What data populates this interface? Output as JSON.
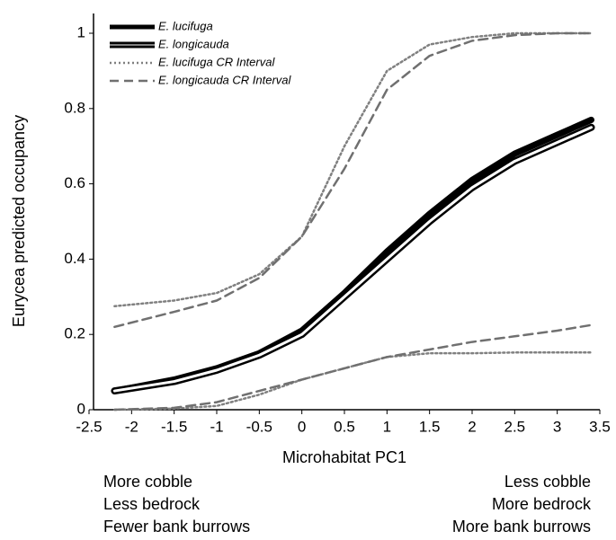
{
  "chart_data": {
    "type": "line",
    "y_label": "Eurycea predicted occupancy",
    "x_label": "Microhabitat PC1",
    "annotations_left": [
      "More cobble",
      "Less bedrock",
      "Fewer bank burrows"
    ],
    "annotations_right": [
      "Less cobble",
      "More bedrock",
      "More bank burrows"
    ],
    "x": [
      -2.2,
      -1.5,
      -1,
      -0.5,
      0,
      0.5,
      1,
      1.5,
      2,
      2.5,
      3,
      3.4
    ],
    "series": [
      {
        "name": "E. lucifuga",
        "color": "#000000",
        "style": "solid",
        "values": [
          0.05,
          0.08,
          0.11,
          0.15,
          0.21,
          0.31,
          0.42,
          0.52,
          0.61,
          0.68,
          0.73,
          0.77
        ]
      },
      {
        "name": "E. longicauda",
        "color": "#000000",
        "style": "double",
        "values": [
          0.05,
          0.075,
          0.105,
          0.145,
          0.2,
          0.3,
          0.4,
          0.5,
          0.59,
          0.66,
          0.71,
          0.75
        ]
      },
      {
        "name": "E. lucifuga CR Interval",
        "color": "#808080",
        "style": "dotted",
        "upper": [
          0.275,
          0.29,
          0.31,
          0.36,
          0.46,
          0.7,
          0.9,
          0.97,
          0.99,
          1.0,
          1.0,
          1.0
        ],
        "lower": [
          0.0,
          0.003,
          0.01,
          0.04,
          0.08,
          0.11,
          0.14,
          0.15,
          0.15,
          0.152,
          0.152,
          0.152
        ]
      },
      {
        "name": "E. longicauda CR Interval",
        "color": "#707070",
        "style": "dashed",
        "upper": [
          0.22,
          0.26,
          0.29,
          0.35,
          0.46,
          0.64,
          0.85,
          0.94,
          0.98,
          0.995,
          1.0,
          1.0
        ],
        "lower": [
          0.0,
          0.005,
          0.02,
          0.05,
          0.08,
          0.11,
          0.14,
          0.16,
          0.18,
          0.195,
          0.21,
          0.225
        ]
      }
    ],
    "xlim": [
      -2.5,
      3.5
    ],
    "xticks": [
      -2.5,
      -2,
      -1.5,
      -1,
      -0.5,
      0,
      0.5,
      1,
      1.5,
      2,
      2.5,
      3,
      3.5
    ],
    "ylim": [
      0,
      1
    ],
    "yticks": [
      0,
      0.2,
      0.4,
      0.6,
      0.8,
      1
    ],
    "grid": false,
    "legend": "top-left"
  }
}
